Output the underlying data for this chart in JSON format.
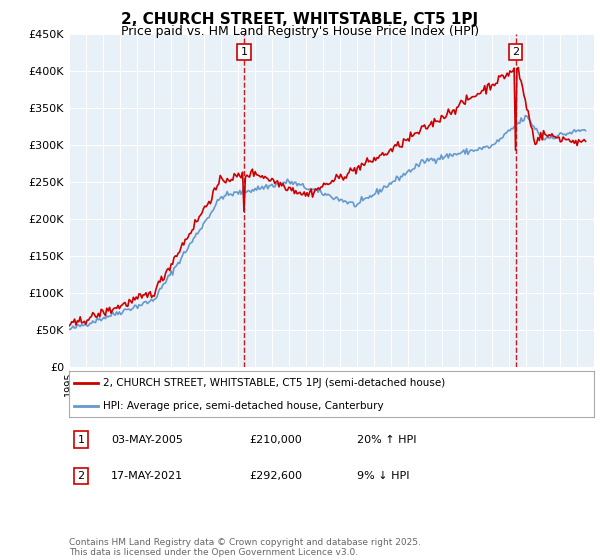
{
  "title": "2, CHURCH STREET, WHITSTABLE, CT5 1PJ",
  "subtitle": "Price paid vs. HM Land Registry's House Price Index (HPI)",
  "legend_line1": "2, CHURCH STREET, WHITSTABLE, CT5 1PJ (semi-detached house)",
  "legend_line2": "HPI: Average price, semi-detached house, Canterbury",
  "annotation1_label": "1",
  "annotation1_date": "03-MAY-2005",
  "annotation1_price": "£210,000",
  "annotation1_hpi": "20% ↑ HPI",
  "annotation2_label": "2",
  "annotation2_date": "17-MAY-2021",
  "annotation2_price": "£292,600",
  "annotation2_hpi": "9% ↓ HPI",
  "footer": "Contains HM Land Registry data © Crown copyright and database right 2025.\nThis data is licensed under the Open Government Licence v3.0.",
  "xmin": 1995.0,
  "xmax": 2026.0,
  "ymin": 0,
  "ymax": 450000,
  "sale1_x": 2005.33,
  "sale2_x": 2021.37,
  "red_color": "#cc0000",
  "blue_color": "#6699cc",
  "plot_bg": "#e8f0f8"
}
